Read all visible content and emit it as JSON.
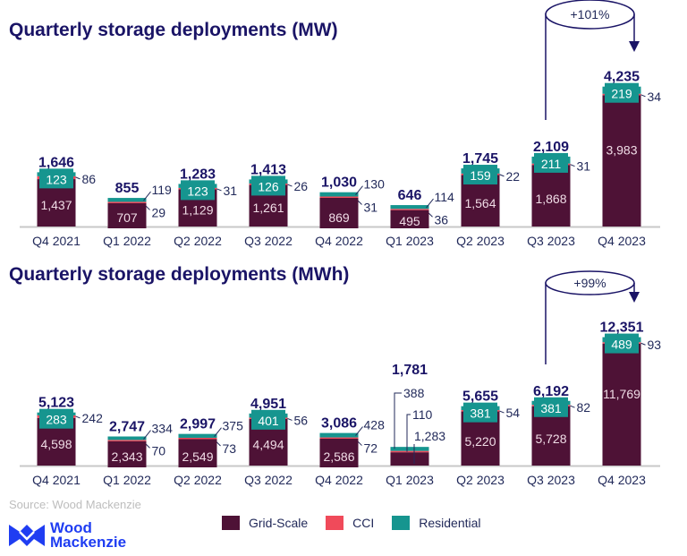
{
  "source": "Source: Wood Mackenzie",
  "logo": {
    "line1": "Wood",
    "line2": "Mackenzie"
  },
  "colors": {
    "grid": "#4e1236",
    "cci": "#f04a5a",
    "res": "#16958f",
    "title": "#1a1466",
    "label": "#222a5a",
    "axis": "#c8c8c8"
  },
  "legend": [
    {
      "name": "Grid-Scale",
      "color": "#4e1236"
    },
    {
      "name": "CCI",
      "color": "#f04a5a"
    },
    {
      "name": "Residential",
      "color": "#16958f"
    }
  ],
  "chart_data": [
    {
      "type": "bar",
      "stacked": true,
      "title": "Quarterly storage deployments (MW)",
      "categories": [
        "Q4 2021",
        "Q1 2022",
        "Q2 2022",
        "Q3 2022",
        "Q4 2022",
        "Q1 2023",
        "Q2 2023",
        "Q3 2023",
        "Q4 2023"
      ],
      "series": [
        {
          "name": "Grid-Scale",
          "values": [
            1437,
            707,
            1129,
            1261,
            869,
            495,
            1564,
            1868,
            3983
          ]
        },
        {
          "name": "CCI",
          "values": [
            86,
            29,
            31,
            26,
            31,
            36,
            22,
            31,
            34
          ]
        },
        {
          "name": "Residential",
          "values": [
            123,
            119,
            123,
            126,
            130,
            114,
            159,
            211,
            219
          ]
        }
      ],
      "totals": [
        "1,646",
        "855",
        "1,283",
        "1,413",
        "1,030",
        "646",
        "1,745",
        "2,109",
        "4,235"
      ],
      "grid_labels": [
        "1,437",
        "707",
        "1,129",
        "1,261",
        "869",
        "495",
        "1,564",
        "1,868",
        "3,983"
      ],
      "cci_labels": [
        "86",
        "29",
        "31",
        "26",
        "31",
        "36",
        "22",
        "31",
        "34"
      ],
      "res_labels": [
        "123",
        "119",
        "123",
        "126",
        "130",
        "114",
        "159",
        "211",
        "219"
      ],
      "annotation": {
        "text": "+101%",
        "from": "Q3 2023",
        "to": "Q4 2023"
      },
      "ylim": [
        0,
        4235
      ],
      "legend": "bottom"
    },
    {
      "type": "bar",
      "stacked": true,
      "title": "Quarterly storage deployments (MWh)",
      "categories": [
        "Q4 2021",
        "Q1 2022",
        "Q2 2022",
        "Q3 2022",
        "Q4 2022",
        "Q1 2023",
        "Q2 2023",
        "Q3 2023",
        "Q4 2023"
      ],
      "series": [
        {
          "name": "Grid-Scale",
          "values": [
            4598,
            2343,
            2549,
            4494,
            2586,
            1283,
            5220,
            5728,
            11769
          ]
        },
        {
          "name": "CCI",
          "values": [
            242,
            70,
            73,
            56,
            72,
            110,
            54,
            82,
            93
          ]
        },
        {
          "name": "Residential",
          "values": [
            283,
            334,
            375,
            401,
            428,
            388,
            381,
            381,
            489
          ]
        }
      ],
      "totals": [
        "5,123",
        "2,747",
        "2,997",
        "4,951",
        "3,086",
        "1,781",
        "5,655",
        "6,192",
        "12,351"
      ],
      "grid_labels": [
        "4,598",
        "2,343",
        "2,549",
        "4,494",
        "2,586",
        "1,283",
        "5,220",
        "5,728",
        "11,769"
      ],
      "cci_labels": [
        "242",
        "70",
        "73",
        "56",
        "72",
        "110",
        "54",
        "82",
        "93"
      ],
      "res_labels": [
        "283",
        "334",
        "375",
        "401",
        "428",
        "388",
        "381",
        "381",
        "489"
      ],
      "annotation": {
        "text": "+99%",
        "from": "Q3 2023",
        "to": "Q4 2023"
      },
      "ylim": [
        0,
        12351
      ],
      "legend": "bottom"
    }
  ]
}
